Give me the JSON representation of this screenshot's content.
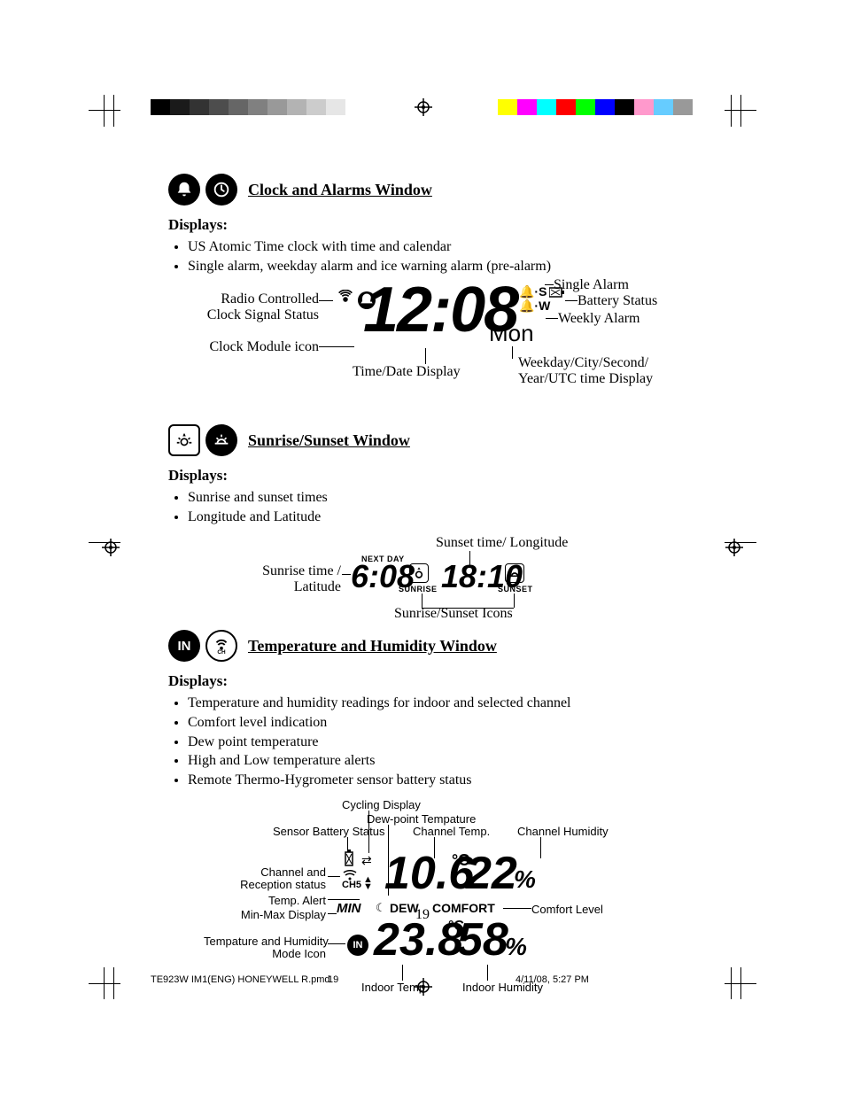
{
  "colorbars": {
    "left": [
      "#000000",
      "#1a1a1a",
      "#333333",
      "#4d4d4d",
      "#666666",
      "#808080",
      "#999999",
      "#b3b3b3",
      "#cccccc",
      "#e6e6e6",
      "#ffffff"
    ],
    "right": [
      "#ffffff",
      "#ffff00",
      "#ff00ff",
      "#00ffff",
      "#ff0000",
      "#00ff00",
      "#0000ff",
      "#000000",
      "#ff99cc",
      "#66ccff",
      "#999999"
    ]
  },
  "sections": {
    "clock": {
      "title": "Clock and Alarms Window",
      "displays_label": "Displays:",
      "bullets": [
        "US Atomic Time clock with time and calendar",
        "Single alarm, weekday alarm and ice warning alarm (pre-alarm)"
      ],
      "diagram": {
        "time": "12:08",
        "weekday": "Mon",
        "s_flag": "S",
        "w_flag": "W",
        "next_day": "NEXT DAY",
        "labels": {
          "radio": "Radio Controlled",
          "signal": "Clock Signal Status",
          "module": "Clock Module icon",
          "timedate": "Time/Date Display",
          "single_alarm": "Single Alarm",
          "battery": "Battery Status",
          "weekly_alarm": "Weekly Alarm",
          "weekday_line1": "Weekday/City/Second/",
          "weekday_line2": "Year/UTC time Display"
        }
      }
    },
    "sun": {
      "title": "Sunrise/Sunset Window",
      "displays_label": "Displays:",
      "bullets": [
        "Sunrise and sunset times",
        "Longitude and Latitude"
      ],
      "diagram": {
        "sunrise_time": "6:08",
        "sunset_time": "18:10",
        "sunrise_lbl": "SUNRISE",
        "sunset_lbl": "SUNSET",
        "labels": {
          "sunrise": "Sunrise time /",
          "latitude": "Latitude",
          "sunset_long": "Sunset time/ Longitude",
          "icons": "Sunrise/Sunset Icons"
        }
      }
    },
    "temp": {
      "title": "Temperature and Humidity Window",
      "displays_label": "Displays:",
      "bullets": [
        "Temperature and humidity readings for indoor and selected channel",
        "Comfort level indication",
        "Dew point temperature",
        "High and Low temperature alerts",
        "Remote Thermo-Hygrometer sensor battery status"
      ],
      "diagram": {
        "ch_temp": "10.6",
        "ch_unit": "°C",
        "ch_hum": "22",
        "in_temp": "23.8",
        "in_unit": "°C",
        "in_hum": "58",
        "pct": "%",
        "min": "MIN",
        "dew": "DEW",
        "comfort": "COMFORT",
        "ch5_label": "CH5",
        "labels": {
          "cycling": "Cycling Display",
          "dewpoint": "Dew-point Tempature",
          "sensor_batt": "Sensor Battery Status",
          "ch_temp": "Channel Temp.",
          "ch_hum": "Channel Humidity",
          "ch_recep": "Channel and",
          "ch_recep2": "Reception status",
          "temp_alert": "Temp. Alert",
          "minmax": "Min-Max Display",
          "mode_icon1": "Tempature and Humidity",
          "mode_icon2": "Mode Icon",
          "comfort_lvl": "Comfort Level",
          "in_temp": "Indoor Temp.",
          "in_hum": "Indoor Humidity"
        }
      }
    }
  },
  "page_number": "19",
  "footer": {
    "filename": "TE923W IM1(ENG) HONEYWELL R.pmd",
    "page": "19",
    "datetime": "4/11/08, 5:27 PM"
  }
}
